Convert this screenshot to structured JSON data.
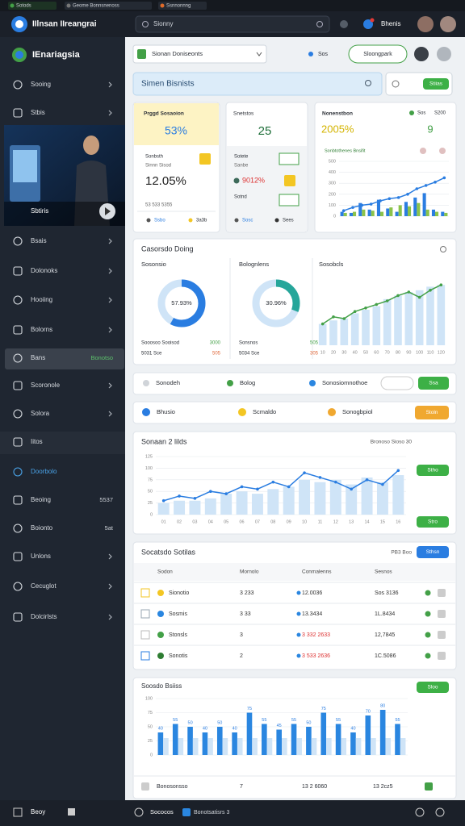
{
  "window": {
    "tabs": [
      "Sotods",
      "Geome Bonnsnenoss",
      "Ssnnonnng"
    ]
  },
  "header": {
    "title": "IIlnsan IIreangrai",
    "search": "Sionny",
    "user": "Bhenis"
  },
  "sidebar": {
    "brand": "IEnariagsia",
    "items": [
      {
        "label": "Sooing"
      },
      {
        "label": "Stbis"
      },
      {
        "label": "Bsais"
      },
      {
        "label": "Dolonoks"
      },
      {
        "label": "Hooiing"
      },
      {
        "label": "Bolorns"
      },
      {
        "label": "Bans",
        "badge": "Bonotso"
      },
      {
        "label": "Scoronole"
      },
      {
        "label": "Solora"
      },
      {
        "label": "Iitos"
      },
      {
        "label": "Doorbolo"
      },
      {
        "label": "Beoing",
        "badge": "5537"
      },
      {
        "label": "Boionto",
        "badge": "5at"
      },
      {
        "label": "Unlons"
      },
      {
        "label": "Cecuglot"
      },
      {
        "label": "Dolcirlsts"
      }
    ],
    "video_label": "Sbtiris",
    "footer": "Beoy"
  },
  "toolbar": {
    "dropdown": "Sionan Doniseonts",
    "status": "Sos",
    "button": "Sloongpark"
  },
  "search": {
    "placeholder": "Simen Bisnists",
    "button": "Stiias"
  },
  "cards": {
    "first": {
      "title": "Prggd Sosaoion",
      "value": "53%",
      "label": "Sonbsth",
      "caption": "Sinnn Sisod",
      "value2": "12.05%",
      "foot": "53 533 5355",
      "foot_left": "Ssbo",
      "foot_right": "3a3b"
    },
    "second": {
      "title": "Snetstos",
      "value": "25",
      "row1": "Sotete",
      "row2": "Sanbe",
      "value2": "9012%",
      "row3": "Sotnd",
      "foot_left": "Sosc",
      "foot_right": "Sees"
    },
    "third": {
      "title": "Nonenstbon",
      "badge1": "Sos",
      "badge2": "S200",
      "value": "2005%",
      "count": "9",
      "subtitle": "Sonbtothenes Bnsifit",
      "chart": {
        "type": "bar",
        "categories": [
          null,
          null,
          null,
          null,
          null,
          null,
          null,
          null,
          null,
          null,
          null,
          null
        ],
        "ylim": [
          0,
          500
        ],
        "yticks": [
          0,
          100,
          200,
          300,
          400,
          500
        ],
        "series": [
          {
            "color": "#2a7de1",
            "values": [
              40,
              30,
              120,
              60,
              150,
              70,
              40,
              130,
              170,
              210,
              60,
              40
            ]
          },
          {
            "color": "#8bc34a",
            "values": [
              30,
              40,
              60,
              50,
              40,
              80,
              100,
              90,
              120,
              60,
              40,
              30
            ]
          },
          {
            "type": "line",
            "color": "#2a7de1",
            "values": [
              50,
              80,
              100,
              110,
              140,
              160,
              170,
              200,
              250,
              280,
              310,
              350
            ]
          }
        ]
      }
    }
  },
  "overview": {
    "title": "Casorsdo Doing",
    "donuts": [
      {
        "title": "Sosonsio",
        "value": 57.93,
        "label": "57.93%",
        "color": "#2a7de1",
        "row1": "Sooosoo Sooisod",
        "row1_value": "3000",
        "row2": "5031 Sce",
        "row2_value": "505"
      },
      {
        "title": "Bolognlens",
        "value": 30.96,
        "label": "30.96%",
        "color": "#26a69a",
        "row1": "Sonsnos",
        "row1_value": "505",
        "row2": "5034 Sce",
        "row2_value": "305"
      }
    ],
    "chart_title": "Sosobcls",
    "chart": {
      "type": "bar",
      "categories": [
        "10",
        "20",
        "30",
        "40",
        "50",
        "60",
        "70",
        "80",
        "90",
        "100",
        "110",
        "120"
      ],
      "ylim": [
        0,
        400
      ],
      "series": [
        {
          "color": "#cfe4f7",
          "values": [
            120,
            140,
            150,
            180,
            200,
            220,
            260,
            280,
            300,
            310,
            330,
            340
          ]
        },
        {
          "type": "line",
          "color": "#43a047",
          "values": [
            120,
            160,
            150,
            190,
            210,
            230,
            250,
            280,
            300,
            270,
            310,
            340
          ]
        }
      ]
    }
  },
  "filters": {
    "items": [
      "Sonodeh",
      "Bolog",
      "Sonosiomnothoe"
    ],
    "button": "Ssa"
  },
  "tabs": {
    "items": [
      "Bhusio",
      "Scmaldo",
      "Sonogbpiol"
    ],
    "button": "Stoln"
  },
  "trend": {
    "title": "Sonaan 2 lilds",
    "meta": "Bronoso Sioso 30",
    "button": "Stho",
    "button2": "Stro",
    "chart": {
      "type": "bar",
      "categories": [
        "01",
        "02",
        "03",
        "04",
        "05",
        "06",
        "07",
        "08",
        "09",
        "10",
        "11",
        "12",
        "13",
        "14",
        "15",
        "16"
      ],
      "ylim": [
        0,
        125
      ],
      "yticks": [
        0,
        25,
        50,
        75,
        100,
        125
      ],
      "series": [
        {
          "color": "#cfe4f7",
          "values": [
            25,
            30,
            30,
            35,
            45,
            50,
            45,
            55,
            60,
            75,
            70,
            75,
            65,
            80,
            70,
            85
          ]
        },
        {
          "type": "line",
          "color": "#2a7de1",
          "values": [
            30,
            40,
            35,
            50,
            45,
            60,
            55,
            70,
            60,
            90,
            80,
            70,
            55,
            75,
            65,
            95
          ]
        }
      ]
    }
  },
  "table": {
    "title": "Socatsdo Sotilas",
    "meta": "PB3 Boo",
    "button": "Sthsn",
    "columns": [
      "Sodon",
      "Mornolo",
      "Conmalenns",
      "Sesnos"
    ],
    "rows": [
      [
        "Sionotio",
        "3 233",
        "12.0036",
        "Sos 3136"
      ],
      [
        "Sosmis",
        "3 33",
        "13.3434",
        "1L.8434"
      ],
      [
        "Stonsls",
        "3",
        "3 332 2633",
        "12,7845"
      ],
      [
        "Sonotis",
        "2",
        "3 533 2636",
        "1C.5086"
      ]
    ]
  },
  "bars": {
    "title": "Soosdo Bsiiss",
    "button": "Sloo",
    "chart": {
      "type": "bar",
      "categories": [
        null,
        null,
        null,
        null,
        null,
        null,
        null,
        null,
        null,
        null,
        null,
        null,
        null,
        null,
        null,
        null,
        null
      ],
      "ylim": [
        0,
        100
      ],
      "yticks": [
        0,
        25,
        50,
        75,
        100
      ],
      "series": [
        {
          "color": "#2a86e0",
          "values": [
            40,
            55,
            50,
            40,
            50,
            40,
            75,
            55,
            45,
            55,
            50,
            75,
            55,
            40,
            70,
            80,
            55
          ]
        },
        {
          "color": "#cfe4f7",
          "values": [
            30,
            30,
            30,
            30,
            30,
            30,
            30,
            30,
            30,
            30,
            30,
            30,
            30,
            30,
            30,
            30,
            30
          ]
        }
      ]
    },
    "footer": [
      "Bonosonsso",
      "7",
      "13 2 6060",
      "13 2cz5"
    ]
  },
  "statusbar": [
    "Sococos",
    "Bonotsatisrs 3"
  ]
}
